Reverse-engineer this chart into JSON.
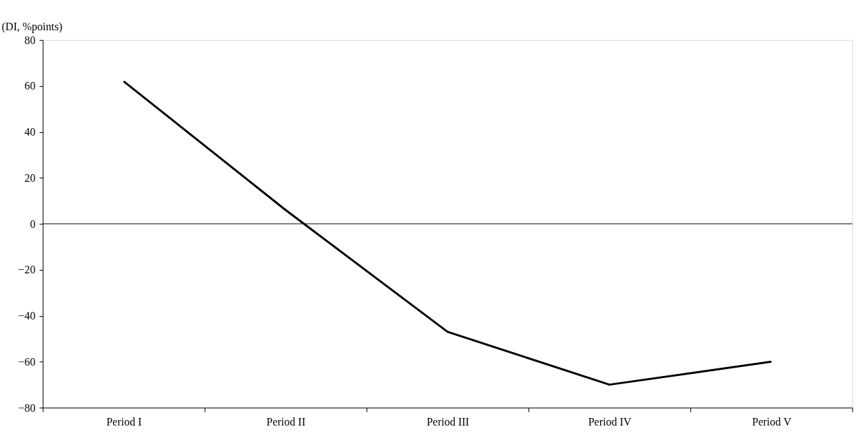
{
  "chart_data": {
    "type": "line",
    "ylabel": "(DI, %points)",
    "categories": [
      "Period I",
      "Period II",
      "Period III",
      "Period IV",
      "Period V"
    ],
    "series": [
      {
        "color": "#000000",
        "values": [
          62,
          6,
          -47,
          -70,
          -60
        ]
      }
    ],
    "ylim": [
      -80,
      80
    ],
    "yticks": [
      -80,
      -60,
      -40,
      -20,
      0,
      20,
      40,
      60,
      80
    ],
    "ref_lines": [
      {
        "axis": "y",
        "value": 0,
        "color": "#000000",
        "line_style": "solid"
      }
    ],
    "marker": "none",
    "line_style": "solid"
  }
}
